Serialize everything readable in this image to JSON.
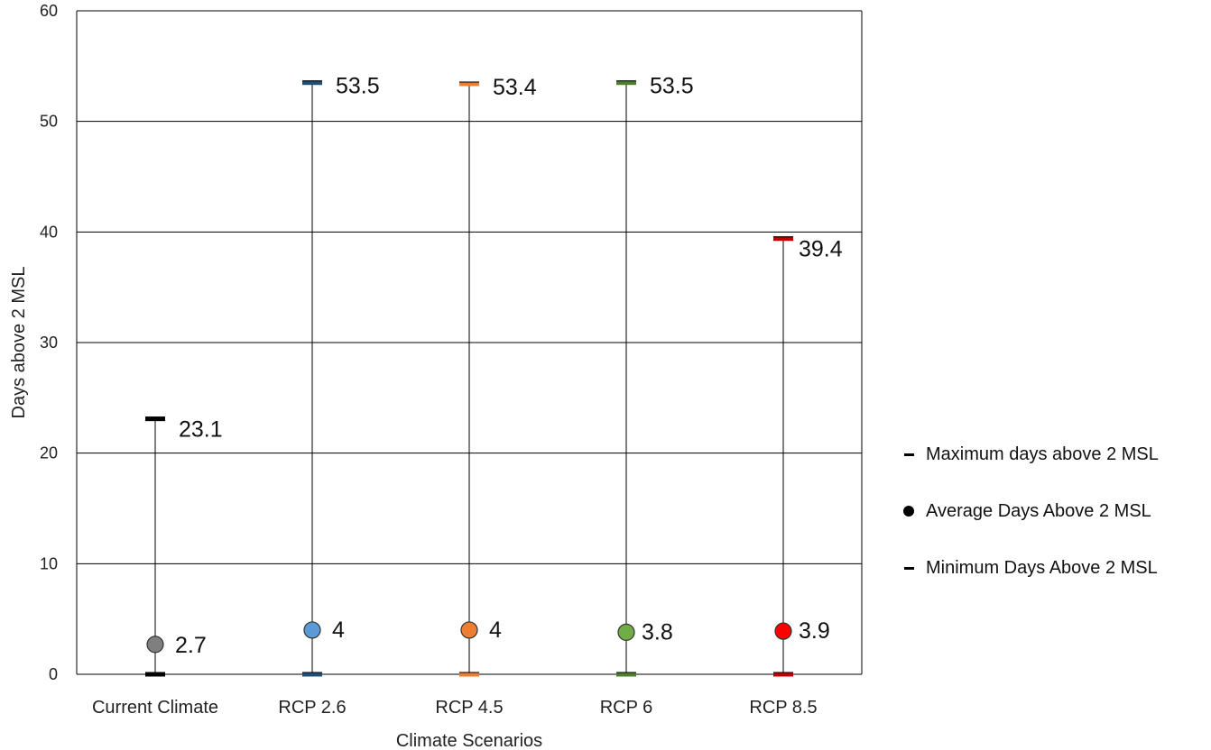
{
  "chart_data": {
    "type": "scatter",
    "xlabel": "Climate Scenarios",
    "ylabel": "Days above 2 MSL",
    "ylim": [
      0,
      60
    ],
    "yticks": [
      0,
      10,
      20,
      30,
      40,
      50,
      60
    ],
    "grid": true,
    "legend_position": "right",
    "categories": [
      "Current Climate",
      "RCP 2.6",
      "RCP 4.5",
      "RCP 6",
      "RCP 8.5"
    ],
    "colors": [
      "#7f7f7f",
      "#5b9bd5",
      "#ed7d31",
      "#70ad47",
      "#ff0000"
    ],
    "cap_colors": [
      "#000000",
      "#1f4e79",
      "#ed7d31",
      "#4e7e2a",
      "#c00000"
    ],
    "series": [
      {
        "name": "Maximum days above 2 MSL",
        "values": [
          23.1,
          53.5,
          53.4,
          53.5,
          39.4
        ],
        "labels": [
          "23.1",
          "53.5",
          "53.4",
          "53.5",
          "39.4"
        ]
      },
      {
        "name": "Average Days Above 2 MSL",
        "values": [
          2.7,
          4,
          4,
          3.8,
          3.9
        ],
        "labels": [
          "2.7",
          "4",
          "4",
          "3.8",
          "3.9"
        ]
      },
      {
        "name": "Minimum Days Above 2 MSL",
        "values": [
          0,
          0,
          0,
          0,
          0
        ]
      }
    ]
  },
  "legend": {
    "items": [
      {
        "label": "Maximum days above 2 MSL",
        "symbol": "dash"
      },
      {
        "label": "Average Days Above 2 MSL",
        "symbol": "dot"
      },
      {
        "label": "Minimum Days Above 2 MSL",
        "symbol": "dash"
      }
    ]
  }
}
